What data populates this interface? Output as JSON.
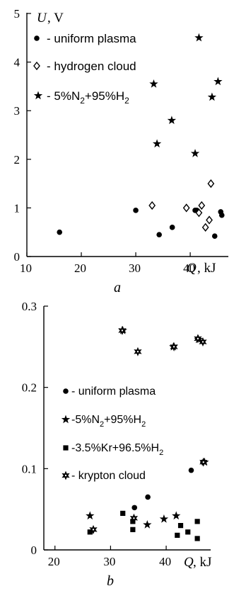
{
  "chart_data": [
    {
      "type": "scatter",
      "panel_label": "a",
      "ylabel": "U",
      "yunit": ", V",
      "xlabel": "Q",
      "xunit": ", kJ",
      "xlim": [
        10,
        47
      ],
      "ylim": [
        0,
        5
      ],
      "xticks": [
        "10",
        "20",
        "30",
        "40"
      ],
      "yticks": [
        "0",
        "1",
        "2",
        "3",
        "4",
        "5"
      ],
      "legend": [
        "- uniform plasma",
        "- hydrogen cloud",
        "5%N2+95%H2"
      ],
      "series": [
        {
          "name": "- uniform plasma",
          "marker": "circle",
          "points": [
            [
              16,
              0.5
            ],
            [
              30,
              0.95
            ],
            [
              34.3,
              0.45
            ],
            [
              36.7,
              0.6
            ],
            [
              40.9,
              0.95
            ],
            [
              41.2,
              0.95
            ],
            [
              44.5,
              0.42
            ],
            [
              45.6,
              0.92
            ],
            [
              45.8,
              0.85
            ]
          ]
        },
        {
          "name": "- hydrogen cloud",
          "marker": "diamond",
          "points": [
            [
              33,
              1.05
            ],
            [
              39.3,
              1.0
            ],
            [
              41.6,
              0.9
            ],
            [
              42.1,
              1.05
            ],
            [
              42.8,
              0.6
            ],
            [
              43.5,
              0.75
            ],
            [
              43.8,
              1.5
            ]
          ]
        },
        {
          "name": "5%N2+95%H2",
          "marker": "star5",
          "points": [
            [
              33.3,
              3.55
            ],
            [
              33.9,
              2.32
            ],
            [
              36.6,
              2.8
            ],
            [
              40.9,
              2.12
            ],
            [
              41.6,
              4.5
            ],
            [
              44,
              3.28
            ],
            [
              45.1,
              3.6
            ]
          ]
        }
      ]
    },
    {
      "type": "scatter",
      "panel_label": "b",
      "xlabel": "Q",
      "xunit": ", kJ",
      "xlim": [
        18,
        48
      ],
      "ylim": [
        0,
        0.3
      ],
      "xticks": [
        "20",
        "30",
        "40"
      ],
      "yticks": [
        "0",
        "0.1",
        "0.2",
        "0.3"
      ],
      "legend": [
        "- uniform plasma",
        "-5%N2+95%H2",
        "-3.5%Kr+96.5%H2",
        "- krypton  cloud"
      ],
      "series": [
        {
          "name": "- uniform plasma",
          "marker": "circle",
          "points": [
            [
              34.3,
              0.052
            ],
            [
              36.7,
              0.065
            ],
            [
              44.5,
              0.098
            ],
            [
              46.6,
              0.108
            ]
          ]
        },
        {
          "name": "-5%N2+95%H2",
          "marker": "star5",
          "points": [
            [
              26.3,
              0.042
            ],
            [
              32.2,
              0.27
            ],
            [
              36.6,
              0.031
            ],
            [
              39.6,
              0.038
            ],
            [
              41.3,
              0.25
            ],
            [
              41.8,
              0.042
            ],
            [
              45.8,
              0.259
            ],
            [
              46.9,
              0.108
            ]
          ]
        },
        {
          "name": "-3.5%Kr+96.5%H2",
          "marker": "square",
          "points": [
            [
              26.3,
              0.022
            ],
            [
              32.2,
              0.045
            ],
            [
              34,
              0.025
            ],
            [
              34,
              0.035
            ],
            [
              42,
              0.018
            ],
            [
              42.6,
              0.03
            ],
            [
              43.9,
              0.022
            ],
            [
              45.6,
              0.035
            ],
            [
              45.6,
              0.014
            ]
          ]
        },
        {
          "name": "- krypton  cloud",
          "marker": "asterisk",
          "points": [
            [
              26.9,
              0.025
            ],
            [
              32.1,
              0.27
            ],
            [
              34.2,
              0.039
            ],
            [
              34.9,
              0.244
            ],
            [
              41.4,
              0.25
            ],
            [
              45.7,
              0.26
            ],
            [
              46.6,
              0.256
            ],
            [
              46.7,
              0.108
            ]
          ]
        }
      ]
    }
  ]
}
